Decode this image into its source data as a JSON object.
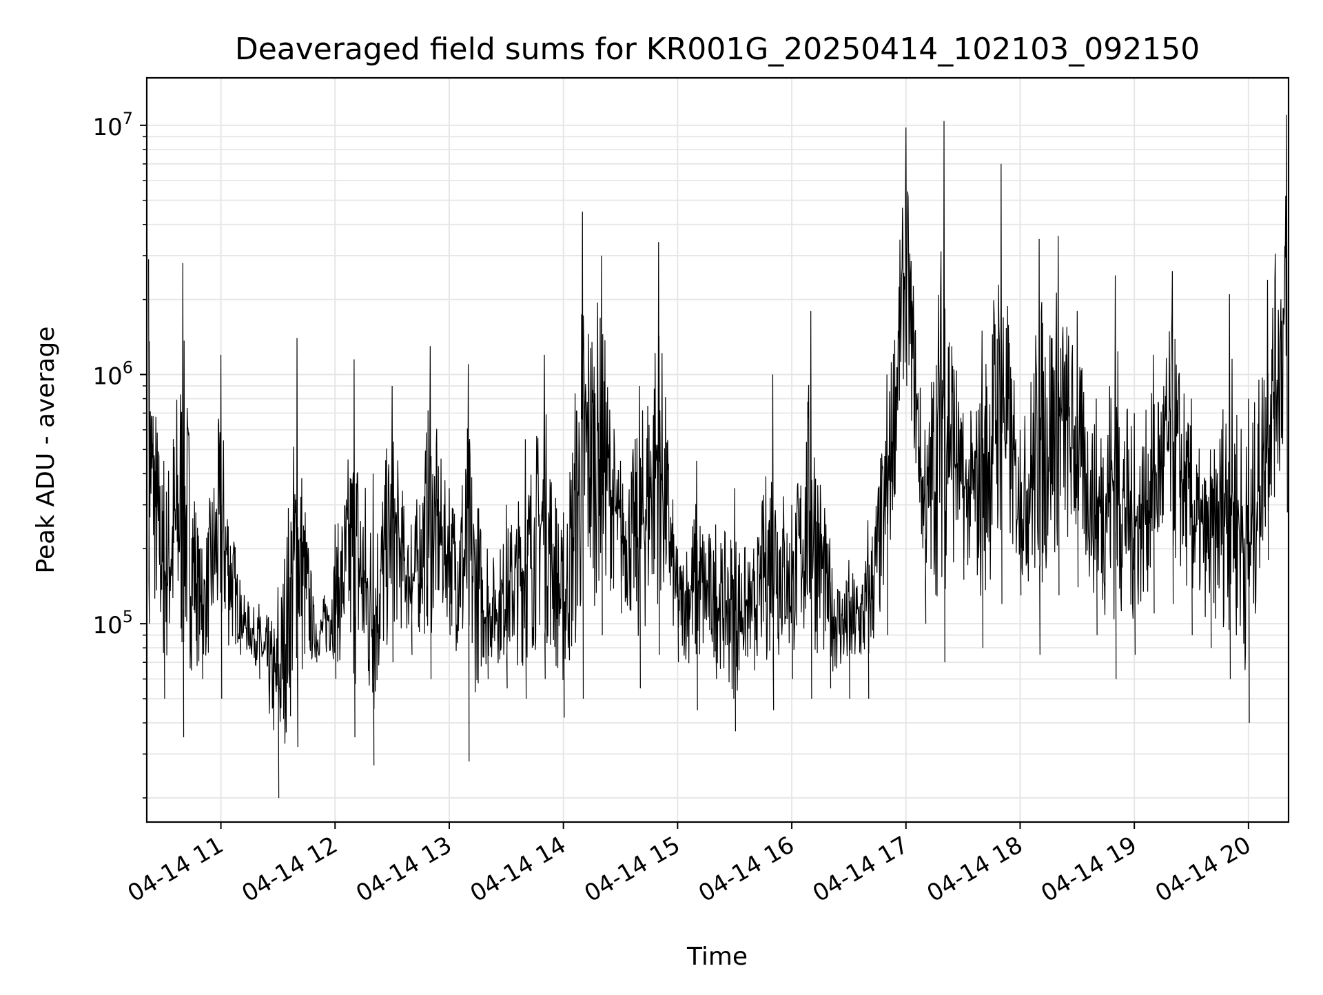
{
  "chart_data": {
    "type": "line",
    "title": "Deaveraged field sums for KR001G_20250414_102103_092150",
    "xlabel": "Time",
    "ylabel": "Peak ADU - average",
    "yscale": "log",
    "xlim": [
      "2025-04-14 10:21:03",
      "2025-04-14 20:21:03"
    ],
    "ylim": [
      16000,
      15500000
    ],
    "grid": true,
    "line_color": "#000000",
    "grid_color": "#e6e6e6",
    "x_ticks": [
      {
        "value": "2025-04-14 11:00",
        "label": "04-14 11"
      },
      {
        "value": "2025-04-14 12:00",
        "label": "04-14 12"
      },
      {
        "value": "2025-04-14 13:00",
        "label": "04-14 13"
      },
      {
        "value": "2025-04-14 14:00",
        "label": "04-14 14"
      },
      {
        "value": "2025-04-14 15:00",
        "label": "04-14 15"
      },
      {
        "value": "2025-04-14 16:00",
        "label": "04-14 16"
      },
      {
        "value": "2025-04-14 17:00",
        "label": "04-14 17"
      },
      {
        "value": "2025-04-14 18:00",
        "label": "04-14 18"
      },
      {
        "value": "2025-04-14 19:00",
        "label": "04-14 19"
      },
      {
        "value": "2025-04-14 20:00",
        "label": "04-14 20"
      }
    ],
    "y_ticks": [
      {
        "value": 100000,
        "base": "10",
        "exp": "5"
      },
      {
        "value": 1000000,
        "base": "10",
        "exp": "6"
      },
      {
        "value": 10000000,
        "base": "10",
        "exp": "7"
      }
    ],
    "series": [
      {
        "x": [
          "10:22",
          "10:30",
          "10:40",
          "10:50",
          "11:00",
          "11:10",
          "11:20",
          "11:30",
          "11:40",
          "11:50",
          "12:00",
          "12:10",
          "12:20",
          "12:30",
          "12:40",
          "12:50",
          "13:00",
          "13:10",
          "13:20",
          "13:30",
          "13:40",
          "13:50",
          "14:00",
          "14:10",
          "14:20",
          "14:30",
          "14:40",
          "14:50",
          "15:00",
          "15:10",
          "15:20",
          "15:30",
          "15:40",
          "15:50",
          "16:00",
          "16:10",
          "16:20",
          "16:30",
          "16:40",
          "16:50",
          "17:00",
          "17:10",
          "17:20",
          "17:30",
          "17:40",
          "17:50",
          "18:00",
          "18:10",
          "18:20",
          "18:30",
          "18:40",
          "18:50",
          "19:00",
          "19:10",
          "19:20",
          "19:30",
          "19:40",
          "19:50",
          "20:00",
          "20:10",
          "20:20"
        ],
        "y": [
          2900000,
          450000,
          2800000,
          200000,
          1200000,
          150000,
          120000,
          140000,
          1400000,
          100000,
          250000,
          1150000,
          400000,
          900000,
          250000,
          1300000,
          350000,
          1100000,
          200000,
          300000,
          550000,
          1200000,
          280000,
          4500000,
          3000000,
          450000,
          900000,
          3400000,
          200000,
          450000,
          250000,
          350000,
          200000,
          1000000,
          300000,
          1800000,
          220000,
          180000,
          260000,
          1000000,
          9800000,
          600000,
          10400000,
          700000,
          1500000,
          7000000,
          600000,
          3500000,
          3600000,
          1800000,
          800000,
          2500000,
          700000,
          1200000,
          2600000,
          800000,
          500000,
          2100000,
          800000,
          2400000,
          11000000
        ],
        "y_low": [
          100000,
          50000,
          35000,
          60000,
          50000,
          75000,
          60000,
          20000,
          32000,
          70000,
          60000,
          35000,
          27000,
          70000,
          75000,
          60000,
          90000,
          28000,
          60000,
          55000,
          50000,
          60000,
          42000,
          50000,
          90000,
          110000,
          55000,
          75000,
          70000,
          45000,
          60000,
          37000,
          65000,
          45000,
          60000,
          50000,
          55000,
          50000,
          50000,
          90000,
          900000,
          100000,
          70000,
          150000,
          80000,
          120000,
          130000,
          75000,
          130000,
          140000,
          90000,
          60000,
          75000,
          110000,
          120000,
          90000,
          80000,
          60000,
          40000,
          180000,
          280000
        ]
      }
    ]
  }
}
